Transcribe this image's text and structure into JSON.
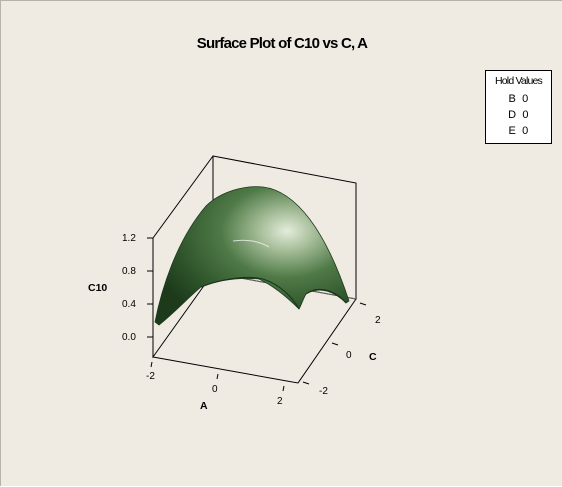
{
  "chart_data": {
    "type": "surface",
    "title": "Surface Plot of C10 vs C, A",
    "xlabel": "A",
    "ylabel": "C",
    "zlabel": "C10",
    "x_ticks": [
      "-2",
      "0",
      "2"
    ],
    "y_ticks": [
      "-2",
      "0",
      "2"
    ],
    "z_ticks": [
      "0.0",
      "0.4",
      "0.8",
      "1.2"
    ],
    "xlim": [
      -2.5,
      2.5
    ],
    "ylim": [
      -2.5,
      2.5
    ],
    "zlim": [
      -0.2,
      1.3
    ],
    "surface_color": "#2f5a2b",
    "highlight_color": "#dfe9d8",
    "hold_values": {
      "title": "Hold Values",
      "items": [
        {
          "factor": "B",
          "value": "0"
        },
        {
          "factor": "D",
          "value": "0"
        },
        {
          "factor": "E",
          "value": "0"
        }
      ]
    }
  }
}
